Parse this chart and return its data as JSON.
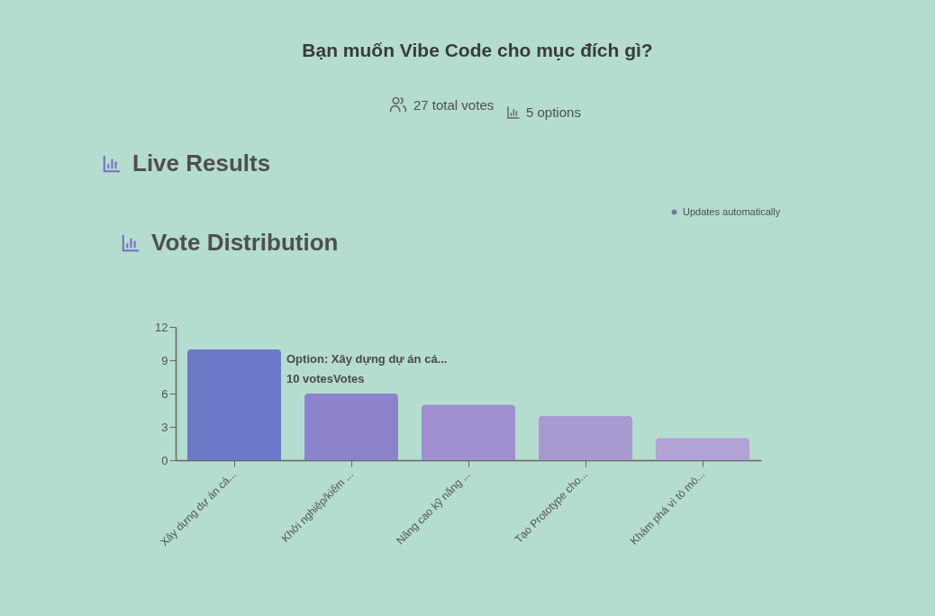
{
  "chart_data": {
    "type": "bar",
    "title": "Bạn muốn Vibe Code cho mục đích gì?",
    "annotations": [
      "27 total votes",
      "5 options",
      "Live Results",
      "Updates automatically",
      "Vote Distribution",
      "Option: Xây dựng dự án cá...",
      "10 votesVotes"
    ],
    "categories": [
      "Xây dựng dự án cá...",
      "Khởi nghiệp/kiếm ...",
      "Nâng cao kỹ năng ...",
      "Tạo Prototype cho...",
      "Khám phá vì tò mò..."
    ],
    "values": [
      10,
      6,
      5,
      4,
      2
    ],
    "colors": [
      "#6f79c9",
      "#8b84cd",
      "#a08fcf",
      "#a899d1",
      "#b1a3d6"
    ],
    "ylim": [
      0,
      12
    ],
    "yticks": [
      0,
      3,
      6,
      9,
      12
    ],
    "grid": false
  }
}
